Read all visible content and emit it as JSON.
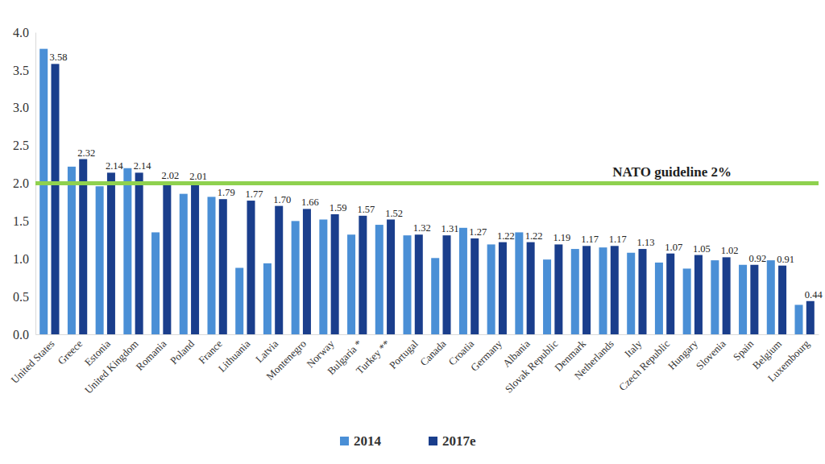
{
  "chart_data": {
    "type": "bar",
    "categories": [
      "United States",
      "Greece",
      "Estonia",
      "United Kingdom",
      "Romania",
      "Poland",
      "France",
      "Lithuania",
      "Latvia",
      "Montenegro",
      "Norway",
      "Bulgaria *",
      "Turkey **",
      "Portugal",
      "Canada",
      "Croatia",
      "Germany",
      "Albania",
      "Slovak Republic",
      "Denmark",
      "Netherlands",
      "Italy",
      "Czech Republic",
      "Hungary",
      "Slovenia",
      "Spain",
      "Belgium",
      "Luxembourg"
    ],
    "series": [
      {
        "name": "2014",
        "color": "#4a8fd6",
        "data_labels": false,
        "values": [
          3.78,
          2.22,
          1.96,
          2.2,
          1.35,
          1.86,
          1.82,
          0.88,
          0.94,
          1.5,
          1.52,
          1.32,
          1.45,
          1.31,
          1.01,
          1.41,
          1.19,
          1.35,
          0.99,
          1.13,
          1.15,
          1.08,
          0.95,
          0.87,
          0.98,
          0.92,
          0.98,
          0.39
        ]
      },
      {
        "name": "2017e",
        "color": "#1a3e8c",
        "data_labels": true,
        "values": [
          3.58,
          2.32,
          2.14,
          2.14,
          2.02,
          2.01,
          1.79,
          1.77,
          1.7,
          1.66,
          1.59,
          1.57,
          1.52,
          1.32,
          1.31,
          1.27,
          1.22,
          1.22,
          1.19,
          1.17,
          1.17,
          1.13,
          1.07,
          1.05,
          1.02,
          0.92,
          0.91,
          0.44
        ],
        "value_labels": [
          "3.58",
          "2.32",
          "2.14",
          "2.14",
          "2.02",
          "2.01",
          "1.79",
          "1.77",
          "1.70",
          "1.66",
          "1.59",
          "1.57",
          "1.52",
          "1.32",
          "1.31",
          "1.27",
          "1.22",
          "1.22",
          "1.19",
          "1.17",
          "1.17",
          "1.13",
          "1.07",
          "1.05",
          "1.02",
          "0.92",
          "0.91",
          "0.44"
        ]
      }
    ],
    "ylim": [
      0,
      4
    ],
    "yticks": [
      {
        "value": 0,
        "label": "0.0"
      },
      {
        "value": 0.5,
        "label": "0.5"
      },
      {
        "value": 1,
        "label": "1.0"
      },
      {
        "value": 1.5,
        "label": "1.5"
      },
      {
        "value": 2,
        "label": "2.0"
      },
      {
        "value": 2.5,
        "label": "2.5"
      },
      {
        "value": 3,
        "label": "3.0"
      },
      {
        "value": 3.5,
        "label": "3.5"
      },
      {
        "value": 4,
        "label": "4.0"
      }
    ],
    "annotations": [
      {
        "text": "NATO guideline 2%",
        "y": 2,
        "color": "#8fd14f"
      }
    ],
    "grid": false,
    "legend": "bottom"
  }
}
